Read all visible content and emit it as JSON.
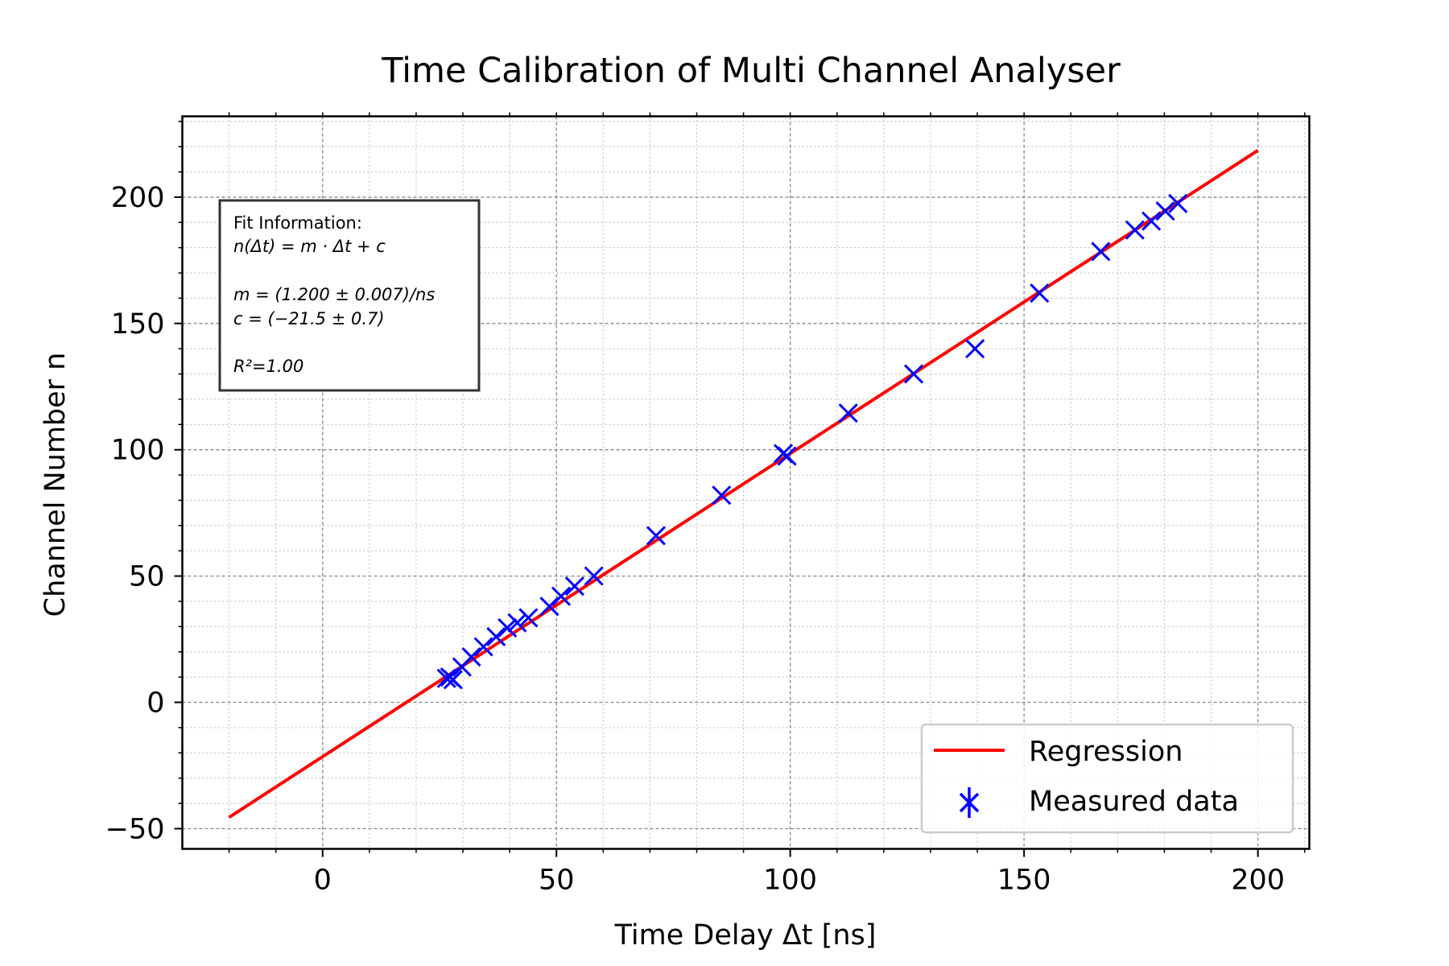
{
  "chart_data": {
    "type": "scatter",
    "title": "Time Calibration of Multi Channel Analyser",
    "xlabel": "Time Delay Δt [ns]",
    "ylabel": "Channel Number n",
    "xlim": [
      -30,
      211
    ],
    "ylim": [
      -58,
      232
    ],
    "xticks": [
      0,
      50,
      100,
      150,
      200
    ],
    "xtick_labels": [
      "0",
      "50",
      "100",
      "150",
      "200"
    ],
    "yticks": [
      -50,
      0,
      50,
      100,
      150,
      200
    ],
    "ytick_labels": [
      "−50",
      "0",
      "50",
      "100",
      "150",
      "200"
    ],
    "grid": true,
    "minor_grid": true,
    "legend_position": "lower-right",
    "series": [
      {
        "name": "Regression",
        "kind": "line",
        "color": "#ff0000",
        "x": [
          -20,
          200
        ],
        "y": [
          -45.5,
          218.5
        ]
      },
      {
        "name": "Measured data",
        "kind": "errorbar-x-marker",
        "color": "#0000ff",
        "x": [
          26.5,
          27.2,
          27.9,
          29.8,
          31.8,
          34.4,
          37.1,
          39.5,
          41.6,
          44.0,
          48.5,
          51.0,
          53.9,
          58.0,
          71.3,
          85.3,
          98.5,
          99.3,
          112.4,
          126.4,
          139.5,
          153.3,
          166.4,
          173.7,
          177.2,
          180.2,
          182.9
        ],
        "y": [
          9.5,
          10.0,
          9.0,
          14.0,
          18.0,
          22.0,
          26.0,
          29.5,
          31.5,
          33.5,
          38.0,
          42.0,
          46.0,
          50.0,
          66.0,
          82.0,
          98.5,
          97.5,
          114.5,
          130.0,
          140.0,
          162.0,
          178.5,
          187.0,
          190.5,
          194.5,
          197.5
        ]
      }
    ],
    "fit_info": {
      "header": "Fit Information:",
      "model": "n(Δt) = m · Δt + c",
      "m_line": "m = (1.200 ± 0.007)/ns",
      "c_line": "c = (−21.5 ± 0.7)",
      "r2_line": "R²=1.00"
    }
  }
}
